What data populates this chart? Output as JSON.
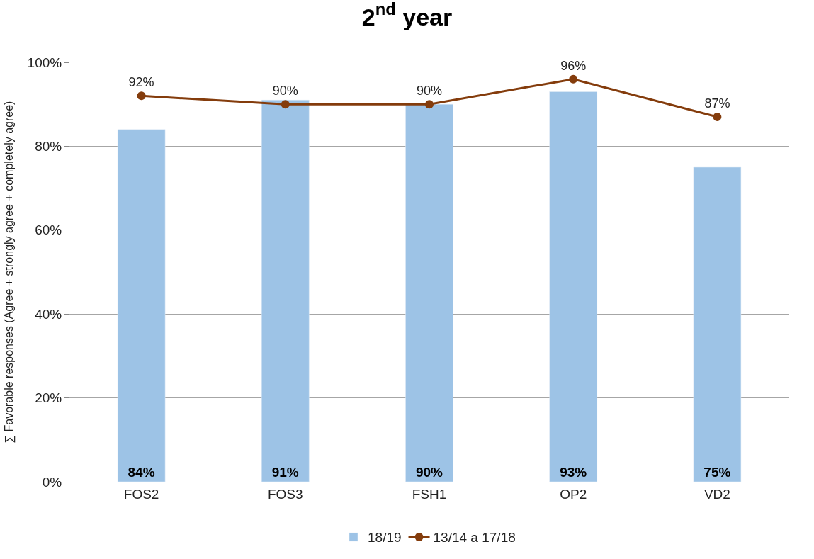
{
  "chart_data": {
    "type": "bar",
    "title": "2$^{nd}$ year",
    "ylabel": "∑ Favorable responses (Agree + strongly agree + completely agree)",
    "categories": [
      "FOS2",
      "FOS3",
      "FSH1",
      "OP2",
      "VD2"
    ],
    "series": [
      {
        "name": "18/19",
        "color": "#9dc3e6",
        "values": [
          84,
          91,
          90,
          93,
          75
        ],
        "value_labels": [
          "84%",
          "91%",
          "90%",
          "93%",
          "75%"
        ]
      },
      {
        "name": "13/14 a 17/18",
        "type": "line",
        "color": "#843c0c",
        "marker": "circle",
        "values": [
          92,
          90,
          90,
          96,
          87
        ],
        "value_labels": [
          "92%",
          "90%",
          "90%",
          "96%",
          "87%"
        ]
      }
    ],
    "ylim": [
      0,
      100
    ],
    "yticks": [
      {
        "value": 0,
        "label": "0%"
      },
      {
        "value": 20,
        "label": "20%"
      },
      {
        "value": 40,
        "label": "40%"
      },
      {
        "value": 60,
        "label": "60%"
      },
      {
        "value": 80,
        "label": "80%"
      },
      {
        "value": 100,
        "label": "100%"
      }
    ],
    "grid": "y",
    "legend": "bottom"
  }
}
